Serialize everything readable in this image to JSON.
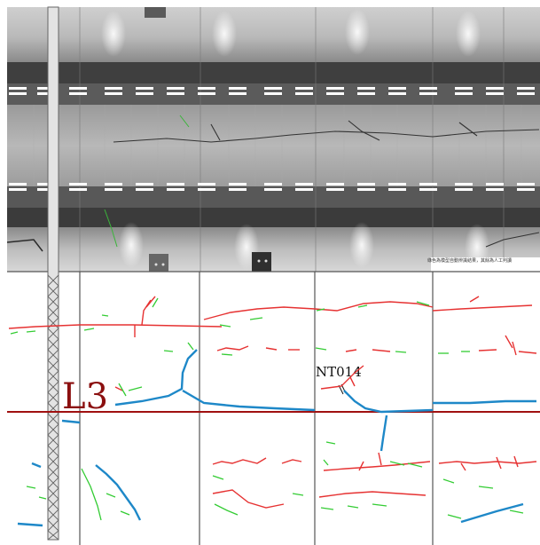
{
  "caption": "綠色為模型自動辨識結果，其餘為人工判讀",
  "labels": {
    "section": "L3",
    "marker": "NT014"
  },
  "legend_colors": {
    "model_detection": "#33cc33",
    "manual_crack": "#e63232",
    "manual_wide": "#1e88c8",
    "section_line": "#a01010"
  }
}
